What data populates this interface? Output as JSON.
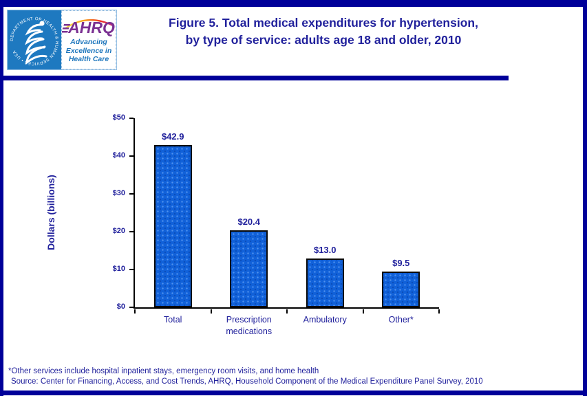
{
  "header": {
    "title_line1": "Figure 5. Total medical expenditures for hypertension,",
    "title_line2": "by type of service: adults age 18 and older, 2010",
    "logo": {
      "hhs_ring_text": "DEPARTMENT OF HEALTH & HUMAN SERVICES • USA",
      "ahrq_acronym": "AHRQ",
      "tagline_line1": "Advancing",
      "tagline_line2": "Excellence in",
      "tagline_line3": "Health Care"
    }
  },
  "chart_data": {
    "type": "bar",
    "title": "Total medical expenditures for hypertension, by type of service: adults age 18 and older, 2010",
    "categories": [
      "Total",
      "Prescription medications",
      "Ambulatory",
      "Other*"
    ],
    "values": [
      42.9,
      20.4,
      13.0,
      9.5
    ],
    "value_labels": [
      "$42.9",
      "$20.4",
      "$13.0",
      "$9.5"
    ],
    "xlabel": "",
    "ylabel": "Dollars (billions)",
    "ylim": [
      0,
      50
    ],
    "y_tick_interval": 10,
    "y_tick_labels": [
      "$0",
      "$10",
      "$20",
      "$30",
      "$40",
      "$50"
    ],
    "grid": false,
    "legend": false,
    "bar_color": "#1161d9",
    "bar_border_color": "#0a0a0a"
  },
  "footnotes": {
    "line1": "*Other services include hospital inpatient stays, emergency room visits, and home health",
    "line2": "Source: Center for Financing, Access, and Cost Trends, AHRQ, Household Component of the Medical Expenditure Panel Survey,  2010"
  },
  "colors": {
    "page_border": "#000099",
    "text_navy": "#21219c",
    "bar_fill": "#1161d9",
    "hhs_blue": "#1e79c0",
    "ahrq_purple": "#7b3192",
    "tagline_blue": "#1c75bc"
  }
}
